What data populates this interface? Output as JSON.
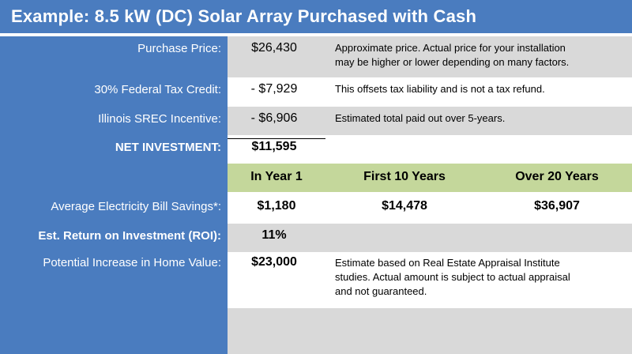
{
  "title": "Example:  8.5 kW (DC) Solar Array Purchased with Cash",
  "rows": {
    "purchase": {
      "label": "Purchase Price:",
      "value": "$26,430",
      "note_line1": "Approximate price.  Actual price for your installation",
      "note_line2": "may be higher or lower depending on many factors."
    },
    "tax_credit": {
      "label": "30% Federal Tax Credit:",
      "value": "- $7,929",
      "note": "This offsets tax liability and is not a tax refund."
    },
    "srec": {
      "label": "Illinois SREC Incentive:",
      "value": "- $6,906",
      "note": "Estimated total paid out over 5-years."
    },
    "net": {
      "label": "NET INVESTMENT:",
      "value": "$11,595"
    }
  },
  "headers": {
    "year1": "In Year 1",
    "ten": "First 10 Years",
    "twenty": "Over 20 Years"
  },
  "savings": {
    "label": "Average Electricity Bill Savings*:",
    "year1": "$1,180",
    "ten": "$14,478",
    "twenty": "$36,907"
  },
  "roi": {
    "label": "Est. Return on Investment (ROI):",
    "value": "11%"
  },
  "home_value": {
    "label": "Potential Increase in Home Value:",
    "value": "$23,000",
    "note_line1": "Estimate based on Real Estate Appraisal Institute",
    "note_line2": "studies.  Actual amount is subject to actual appraisal",
    "note_line3": "and not guaranteed."
  },
  "colors": {
    "blue": "#4a7cbf",
    "gray": "#d9d9d9",
    "green": "#c4d79b"
  }
}
